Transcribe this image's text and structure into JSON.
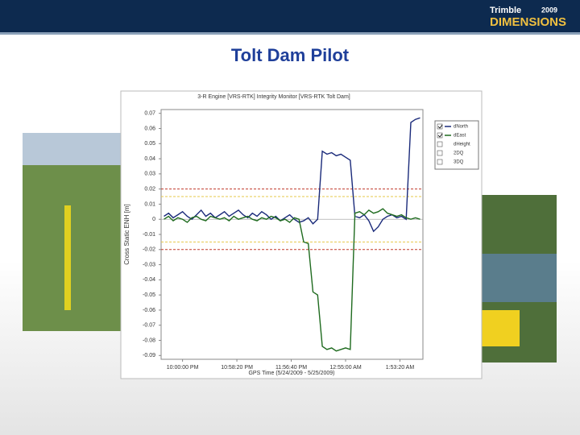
{
  "header": {
    "brand": "Trimble",
    "event": "DIMENSIONS",
    "year": "2009"
  },
  "slide": {
    "title": "Tolt Dam Pilot"
  },
  "chart_data": {
    "type": "line",
    "title": "3-R Engine [VRS-RTK] Integrity Monitor [VRS-RTK Tolt Dam]",
    "y_label": "Cross Static ENH [m]",
    "x_label": "GPS Time (5/24/2009 - 5/25/2009)",
    "x": [
      -20,
      -15,
      -10,
      -5,
      0,
      5,
      10,
      15,
      20,
      25,
      30,
      35,
      40,
      45,
      50,
      55,
      60,
      65,
      70,
      75,
      80,
      85,
      90,
      95,
      100,
      105,
      110,
      115,
      120,
      125,
      130,
      135,
      140,
      145,
      150,
      155,
      160,
      165,
      170,
      175,
      180,
      185,
      190,
      195,
      200,
      205,
      210,
      215,
      220,
      225,
      230,
      235,
      240,
      245,
      250,
      255
    ],
    "series": [
      {
        "name": "dNorth",
        "color": "#1a2a7a",
        "values": [
          0.002,
          0.004,
          0.001,
          0.003,
          0.005,
          0.002,
          0.0,
          0.003,
          0.006,
          0.002,
          0.004,
          0.001,
          0.003,
          0.005,
          0.002,
          0.004,
          0.006,
          0.003,
          0.001,
          0.004,
          0.002,
          0.005,
          0.003,
          0.0,
          0.002,
          -0.001,
          0.001,
          0.003,
          0.0,
          -0.002,
          -0.001,
          0.001,
          -0.003,
          0.0,
          0.045,
          0.043,
          0.044,
          0.042,
          0.043,
          0.041,
          0.039,
          0.002,
          0.001,
          0.003,
          -0.001,
          -0.008,
          -0.005,
          0.0,
          0.002,
          0.003,
          0.001,
          0.002,
          0.0,
          0.064,
          0.066,
          0.067
        ]
      },
      {
        "name": "dEast",
        "color": "#1f6b1f",
        "values": [
          0.0,
          0.002,
          -0.001,
          0.001,
          0.0,
          -0.002,
          0.001,
          0.002,
          0.0,
          -0.001,
          0.002,
          0.001,
          0.0,
          0.001,
          -0.001,
          0.002,
          0.0,
          0.001,
          0.002,
          0.0,
          -0.001,
          0.001,
          0.0,
          0.002,
          0.001,
          -0.001,
          0.0,
          -0.002,
          0.001,
          0.0,
          -0.015,
          -0.016,
          -0.048,
          -0.05,
          -0.084,
          -0.086,
          -0.085,
          -0.087,
          -0.086,
          -0.085,
          -0.086,
          0.004,
          0.005,
          0.003,
          0.006,
          0.004,
          0.005,
          0.007,
          0.004,
          0.003,
          0.002,
          0.003,
          0.001,
          0.0,
          0.001,
          0.0
        ]
      }
    ],
    "legend_extra": [
      "dHeight",
      "2DQ",
      "3DQ"
    ],
    "limits": [
      {
        "value": 0.02,
        "color": "#c0392b"
      },
      {
        "value": -0.02,
        "color": "#c0392b"
      },
      {
        "value": 0.015,
        "color": "#e6c84a"
      },
      {
        "value": -0.015,
        "color": "#e6c84a"
      }
    ],
    "xlim": [
      -23,
      258
    ],
    "xticks": [
      {
        "value": 0,
        "label": "10:00:00 PM"
      },
      {
        "value": 58.33,
        "label": "10:58:20 PM"
      },
      {
        "value": 116.67,
        "label": "11:56:40 PM"
      },
      {
        "value": 175,
        "label": "12:55:00 AM"
      },
      {
        "value": 233.33,
        "label": "1:53:20 AM"
      }
    ],
    "ylim": [
      -0.0925,
      0.0725
    ],
    "yticks": [
      0.07,
      0.06,
      0.05,
      0.04,
      0.03,
      0.02,
      0.01,
      0,
      -0.01,
      -0.02,
      -0.03,
      -0.04,
      -0.05,
      -0.06,
      -0.07,
      -0.08,
      -0.09
    ]
  }
}
